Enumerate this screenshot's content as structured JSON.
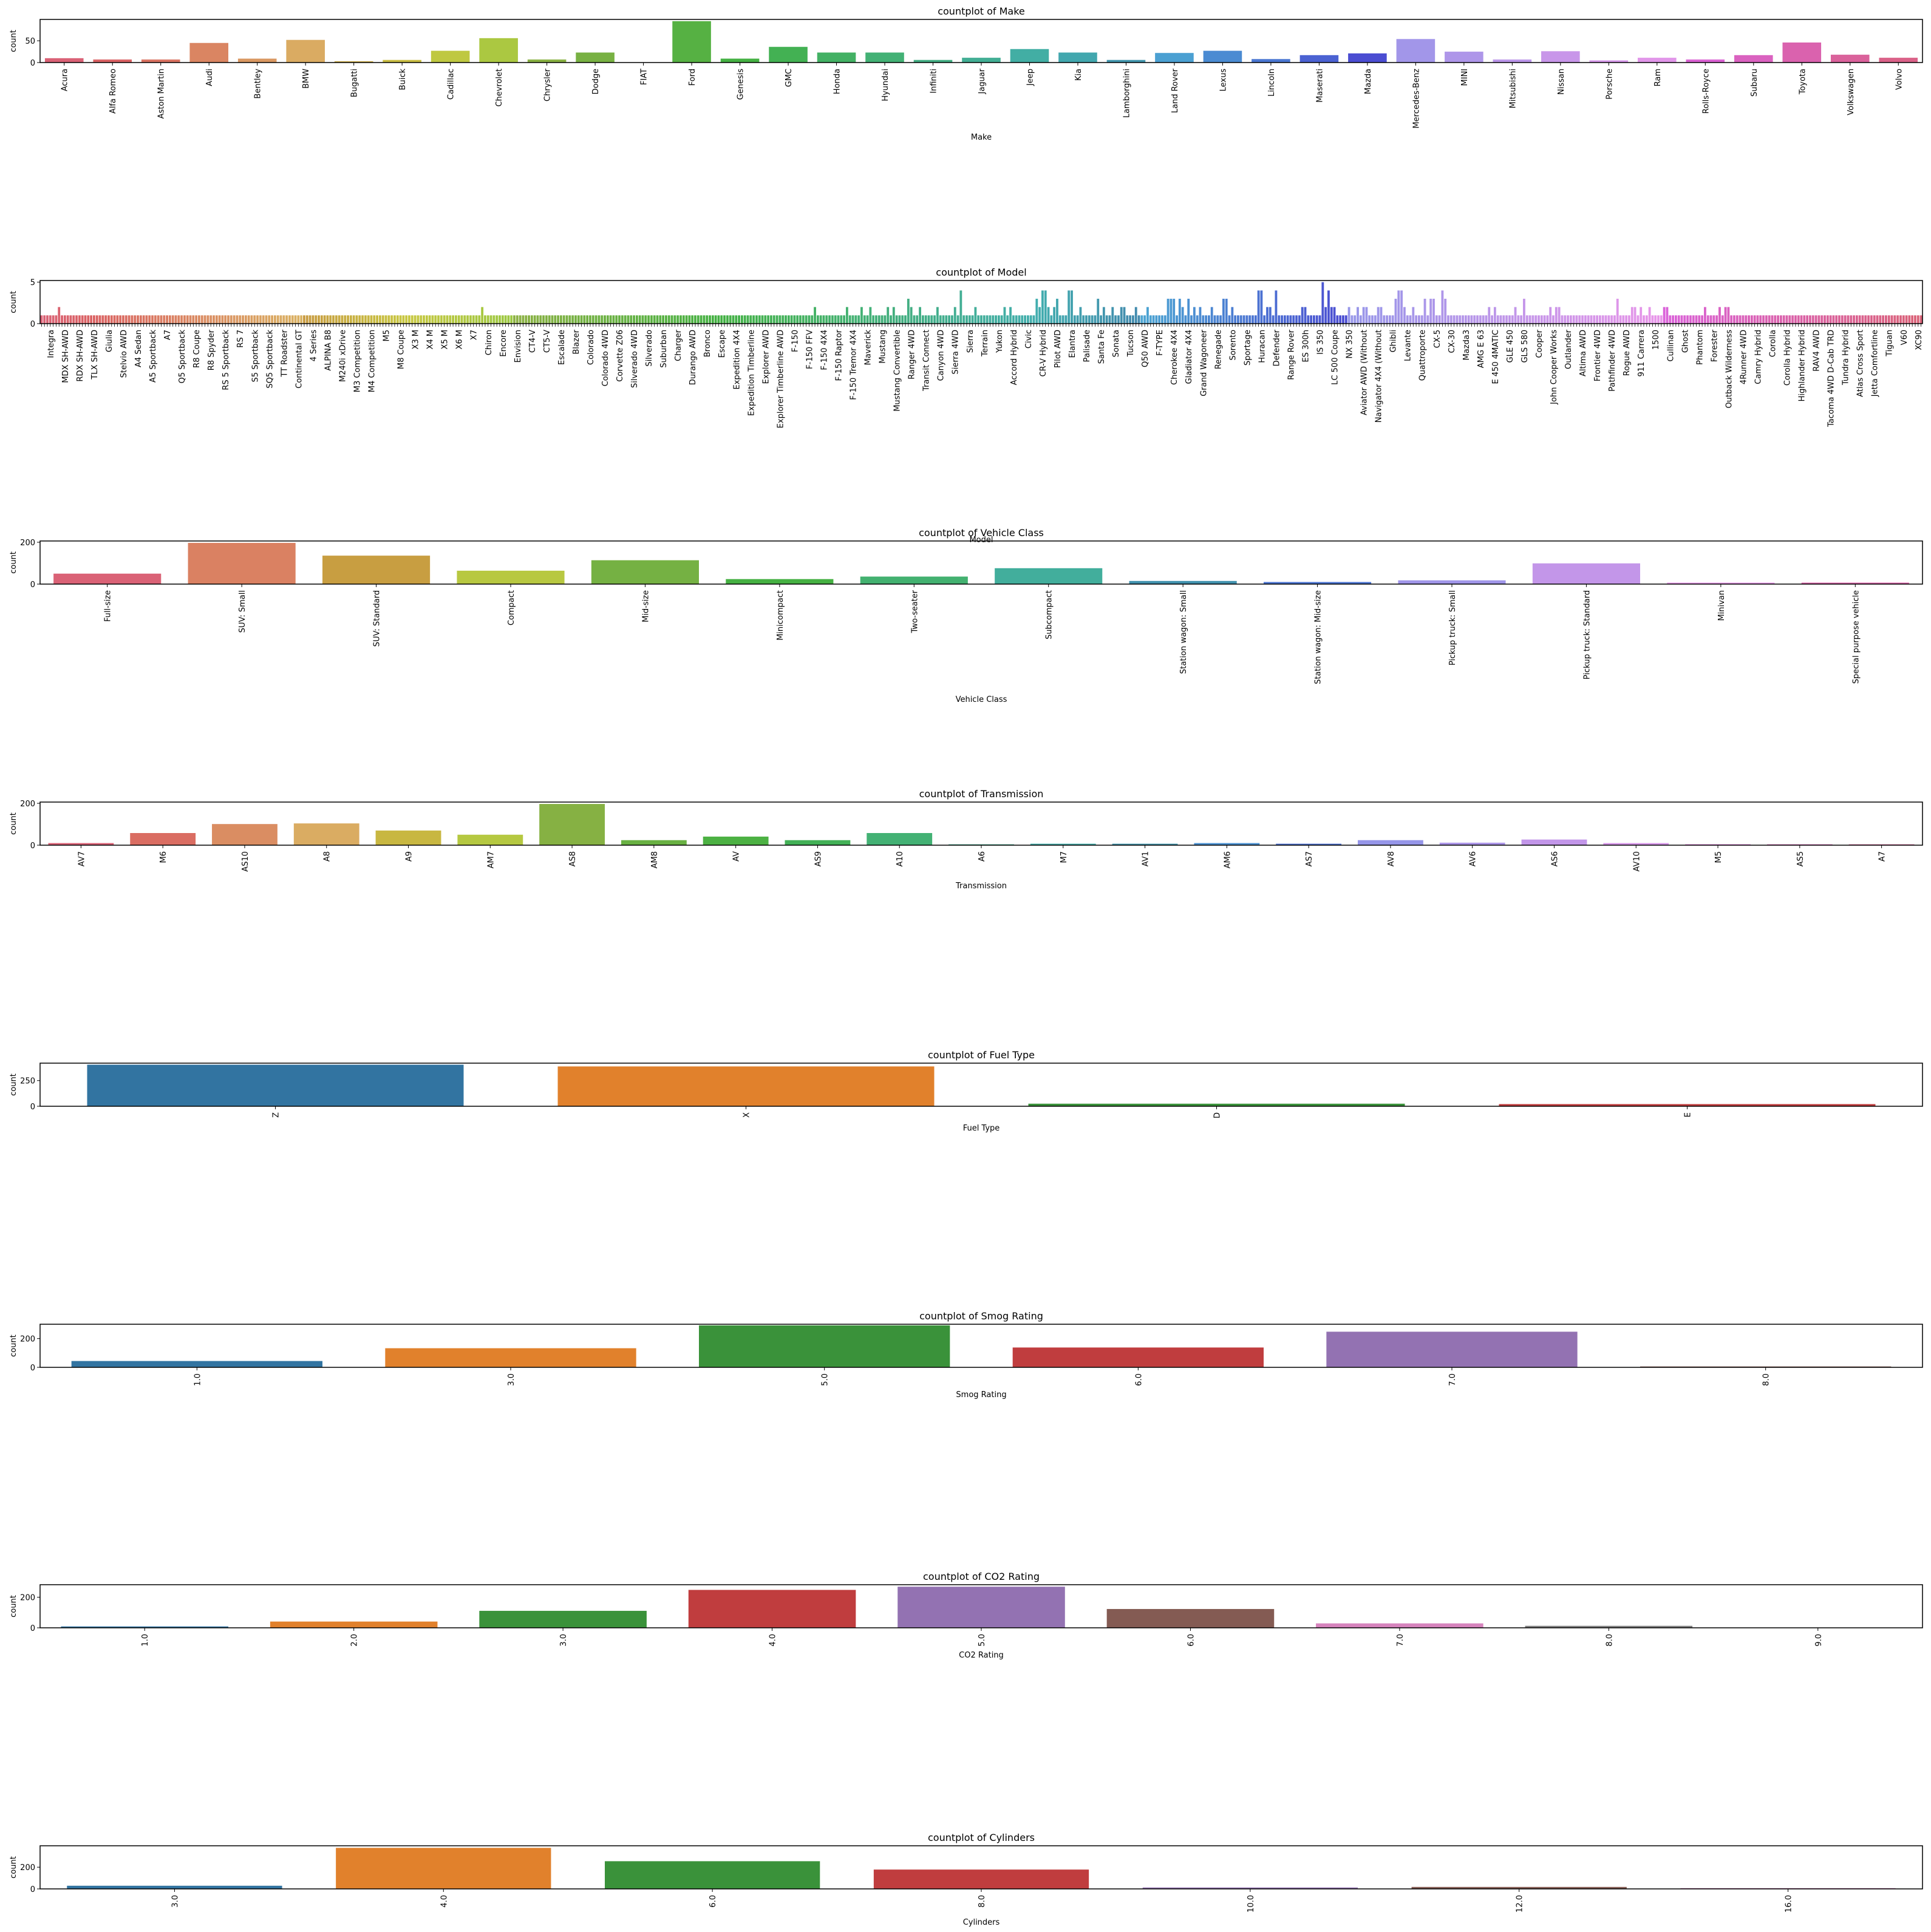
{
  "chart_data": [
    {
      "type": "bar",
      "title": "countplot of Make",
      "xlabel": "Make",
      "ylabel": "count",
      "ylim": [
        0,
        99
      ],
      "yticks": [
        0,
        50
      ],
      "palette": "husl",
      "categories": [
        "Acura",
        "Alfa Romeo",
        "Aston Martin",
        "Audi",
        "Bentley",
        "BMW",
        "Bugatti",
        "Buick",
        "Cadillac",
        "Chevrolet",
        "Chrysler",
        "Dodge",
        "FIAT",
        "Ford",
        "Genesis",
        "GMC",
        "Honda",
        "Hyundai",
        "Infiniti",
        "Jaguar",
        "Jeep",
        "Kia",
        "Lamborghini",
        "Land Rover",
        "Lexus",
        "Lincoln",
        "Maserati",
        "Mazda",
        "Mercedes-Benz",
        "MINI",
        "Mitsubishi",
        "Nissan",
        "Porsche",
        "Ram",
        "Rolls-Royce",
        "Subaru",
        "Toyota",
        "Volkswagen",
        "Volvo"
      ],
      "values": [
        10,
        7,
        7,
        45,
        9,
        52,
        3,
        6,
        27,
        56,
        7,
        23,
        0,
        95,
        9,
        36,
        23,
        23,
        6,
        11,
        31,
        23,
        6,
        22,
        27,
        8,
        17,
        21,
        54,
        25,
        7,
        26,
        5,
        11,
        7,
        17,
        46,
        18,
        11
      ]
    },
    {
      "type": "bar",
      "title": "countplot of Model",
      "xlabel": "Model",
      "ylabel": "count",
      "ylim": [
        0,
        5.2
      ],
      "yticks": [
        0,
        5
      ],
      "palette": "husl",
      "n_categories": 645,
      "peaks": {
        "6": 2,
        "151": 2,
        "265": 2,
        "276": 2,
        "281": 2,
        "284": 2,
        "290": 2,
        "292": 2,
        "297": 3,
        "298": 2,
        "301": 2,
        "307": 2,
        "313": 2,
        "315": 4,
        "320": 2,
        "330": 2,
        "332": 2,
        "341": 3,
        "342": 2,
        "343": 4,
        "344": 4,
        "345": 2,
        "347": 2,
        "348": 3,
        "352": 4,
        "353": 4,
        "356": 2,
        "362": 3,
        "364": 2,
        "367": 2,
        "370": 2,
        "371": 2,
        "375": 2,
        "379": 2,
        "386": 3,
        "387": 3,
        "388": 3,
        "390": 3,
        "391": 2,
        "393": 3,
        "395": 2,
        "397": 2,
        "401": 2,
        "405": 3,
        "406": 3,
        "408": 2,
        "417": 4,
        "418": 4,
        "420": 2,
        "421": 2,
        "423": 4,
        "432": 2,
        "433": 2,
        "439": 5,
        "440": 2,
        "441": 4,
        "442": 2,
        "443": 2,
        "448": 2,
        "451": 2,
        "453": 2,
        "454": 2,
        "458": 2,
        "459": 2,
        "464": 3,
        "465": 4,
        "466": 4,
        "467": 2,
        "470": 2,
        "474": 3,
        "476": 3,
        "477": 3,
        "480": 4,
        "481": 3,
        "496": 2,
        "498": 2,
        "505": 2,
        "508": 3,
        "517": 2,
        "519": 2,
        "520": 2,
        "540": 3,
        "545": 2,
        "546": 2,
        "548": 2,
        "551": 2,
        "556": 2,
        "557": 2,
        "570": 2,
        "575": 2,
        "577": 2,
        "578": 2
      },
      "labels_sample": [
        "Integra",
        "MDX SH-AWD",
        "RDX SH-AWD",
        "TLX SH-AWD",
        "Giulia",
        "Stelvio AWD",
        "A4 Sedan",
        "A5 Sportback",
        "A7",
        "Q5 Sportback",
        "R8 Coupe",
        "R8 Spyder",
        "RS 5 Sportback",
        "RS 7",
        "S5 Sportback",
        "SQ5 Sportback",
        "TT Roadster",
        "Continental GT",
        "4 Series",
        "ALPINA B8",
        "M240i xDrive",
        "M3 Competition",
        "M4 Competition",
        "M5",
        "M8 Coupe",
        "X3 M",
        "X4 M",
        "X5 M",
        "X6 M",
        "X7",
        "Chiron",
        "Encore",
        "Envision",
        "CT4-V",
        "CT5-V",
        "Escalade",
        "Blazer",
        "Colorado",
        "Colorado 4WD",
        "Corvette Z06",
        "Silverado 4WD",
        "Silverado",
        "Suburban",
        "Charger",
        "Durango AWD",
        "Bronco",
        "Escape",
        "Expedition 4X4",
        "Expedition Timberline",
        "Explorer AWD",
        "Explorer Timberline AWD",
        "F-150",
        "F-150 FFV",
        "F-150 4X4",
        "F-150 Raptor",
        "F-150 Tremor 4X4",
        "Maverick",
        "Mustang",
        "Mustang Convertible",
        "Ranger 4WD",
        "Transit Connect",
        "Canyon 4WD",
        "Sierra 4WD",
        "Sierra",
        "Terrain",
        "Yukon",
        "Accord Hybrid",
        "Civic",
        "CR-V Hybrid",
        "Pilot AWD",
        "Elantra",
        "Palisade",
        "Santa Fe",
        "Sonata",
        "Tucson",
        "Q50 AWD",
        "F-TYPE",
        "Cherokee 4X4",
        "Gladiator 4X4",
        "Grand Wagoneer",
        "Renegade",
        "Sorento",
        "Sportage",
        "Huracan",
        "Defender",
        "Range Rover",
        "ES 300h",
        "IS 350",
        "LC 500 Coupe",
        "NX 350",
        "Aviator AWD (Without",
        "Navigator 4X4 (Without",
        "Ghibli",
        "Levante",
        "Quattroporte",
        "CX-5",
        "CX-30",
        "Mazda3",
        "AMG E 63",
        "E 450 4MATIC",
        "GLE 450",
        "GLS 580",
        "Cooper",
        "John Cooper Works",
        "Outlander",
        "Altima AWD",
        "Frontier 4WD",
        "Pathfinder 4WD",
        "Rogue AWD",
        "911 Carrera",
        "1500",
        "Cullinan",
        "Ghost",
        "Phantom",
        "Forester",
        "Outback Wilderness",
        "4Runner 4WD",
        "Camry Hybrid",
        "Corolla",
        "Corolla Hybrid",
        "Highlander Hybrid",
        "RAV4 AWD",
        "Tacoma 4WD D-Cab TRD",
        "Tundra Hybrid",
        "Atlas Cross Sport",
        "Jetta Comfortline",
        "Tiguan",
        "V60",
        "XC90"
      ]
    },
    {
      "type": "bar",
      "title": "countplot of Vehicle Class",
      "xlabel": "Vehicle Class",
      "ylabel": "count",
      "ylim": [
        0,
        206
      ],
      "yticks": [
        0,
        200
      ],
      "palette": "husl",
      "categories": [
        "Full-size",
        "SUV: Small",
        "SUV: Standard",
        "Compact",
        "Mid-size",
        "Minicompact",
        "Two-seater",
        "Subcompact",
        "Station wagon: Small",
        "Station wagon: Mid-size",
        "Pickup truck: Small",
        "Pickup truck: Standard",
        "Minivan",
        "Special purpose vehicle"
      ],
      "values": [
        50,
        197,
        136,
        64,
        114,
        24,
        36,
        76,
        15,
        10,
        18,
        99,
        7,
        7
      ]
    },
    {
      "type": "bar",
      "title": "countplot of Transmission",
      "xlabel": "Transmission",
      "ylabel": "count",
      "ylim": [
        0,
        206
      ],
      "yticks": [
        0,
        200
      ],
      "palette": "husl",
      "categories": [
        "AV7",
        "M6",
        "AS10",
        "A8",
        "A9",
        "AM7",
        "AS8",
        "AM8",
        "AV",
        "AS9",
        "A10",
        "A6",
        "M7",
        "AV1",
        "AM6",
        "AS7",
        "AV8",
        "AV6",
        "AS6",
        "AV10",
        "M5",
        "AS5",
        "A7"
      ],
      "values": [
        10,
        58,
        101,
        104,
        70,
        50,
        197,
        24,
        41,
        24,
        58,
        4,
        7,
        7,
        10,
        7,
        24,
        12,
        27,
        10,
        4,
        4,
        4
      ]
    },
    {
      "type": "bar",
      "title": "countplot of Fuel Type",
      "xlabel": "Fuel Type",
      "ylabel": "count",
      "ylim": [
        0,
        420
      ],
      "yticks": [
        0,
        250
      ],
      "palette": "tab10",
      "categories": [
        "Z",
        "X",
        "D",
        "E"
      ],
      "values": [
        405,
        388,
        25,
        21
      ]
    },
    {
      "type": "bar",
      "title": "countplot of Smog Rating",
      "xlabel": "Smog Rating",
      "ylabel": "count",
      "ylim": [
        0,
        300
      ],
      "yticks": [
        0,
        200
      ],
      "palette": "tab10",
      "categories": [
        "1.0",
        "3.0",
        "5.0",
        "6.0",
        "7.0",
        "8.0"
      ],
      "values": [
        44,
        133,
        292,
        138,
        248,
        6
      ]
    },
    {
      "type": "bar",
      "title": "countplot of CO2 Rating",
      "xlabel": "CO2 Rating",
      "ylabel": "count",
      "ylim": [
        0,
        282
      ],
      "yticks": [
        0,
        200
      ],
      "palette": "tab10",
      "categories": [
        "1.0",
        "2.0",
        "3.0",
        "4.0",
        "5.0",
        "6.0",
        "7.0",
        "8.0",
        "9.0"
      ],
      "values": [
        9,
        41,
        111,
        248,
        269,
        123,
        29,
        13,
        1
      ]
    },
    {
      "type": "bar",
      "title": "countplot of Cylinders",
      "xlabel": "Cylinders",
      "ylabel": "count",
      "ylim": [
        0,
        397
      ],
      "yticks": [
        0,
        200
      ],
      "palette": "tab10",
      "categories": [
        "3.0",
        "4.0",
        "6.0",
        "8.0",
        "10.0",
        "12.0",
        "16.0"
      ],
      "values": [
        29,
        378,
        255,
        178,
        13,
        18,
        7
      ]
    }
  ],
  "colors": {
    "tab10": [
      "#3274a1",
      "#e1812c",
      "#3a923a",
      "#c03d3e",
      "#9372b2",
      "#845b53",
      "#d684bd",
      "#7f7f7f",
      "#a9aa35"
    ],
    "axis": "#000000"
  }
}
